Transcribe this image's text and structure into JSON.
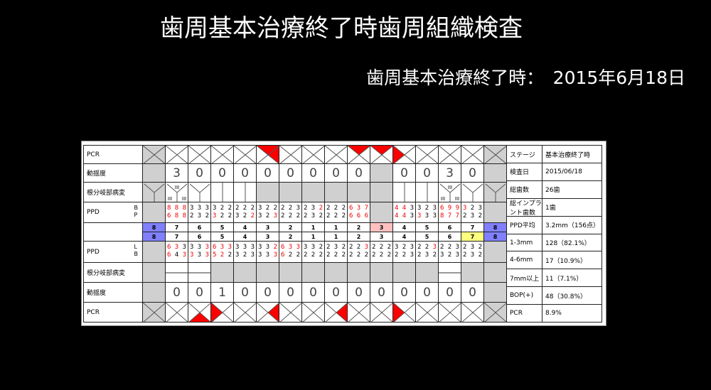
{
  "title": "歯周基本治療終了時歯周組織検査",
  "subtitle": "歯周基本治療終了時：　2015年6月18日",
  "colors": {
    "missing": "#d0d0d0",
    "plaque": "#ff0000",
    "bleeding_text": "#e00000",
    "molar_marker": "#8080ff",
    "highlight_pink": "#ffc0c0",
    "highlight_yellow": "#ffff80"
  },
  "row_labels": {
    "pcr": "PCR",
    "mobility": "動揺度",
    "furcation": "根分岐部病変",
    "ppd": "PPD",
    "upper_sides": "B\nP",
    "lower_sides": "L\nB"
  },
  "upper": {
    "teeth": [
      "8",
      "7",
      "6",
      "5",
      "4",
      "3",
      "2",
      "1",
      "1",
      "2",
      "3",
      "4",
      "5",
      "6",
      "7",
      "8"
    ],
    "tooth_highlight": [
      "blue",
      "",
      "",
      "",
      "",
      "",
      "",
      "",
      "",
      "",
      "pink",
      "",
      "",
      "",
      "",
      "blue"
    ],
    "missing": [
      true,
      false,
      false,
      false,
      false,
      false,
      false,
      false,
      false,
      false,
      true,
      false,
      false,
      false,
      false,
      true
    ],
    "pcr": [
      "",
      "",
      "",
      "",
      "",
      "top-left",
      "",
      "",
      "",
      "top",
      "top",
      "left",
      "",
      "",
      "",
      ""
    ],
    "mobility": [
      "",
      "3",
      "0",
      "0",
      "0",
      "0",
      "0",
      "0",
      "0",
      "0",
      "",
      "0",
      "0",
      "3",
      "0",
      ""
    ],
    "furcation": [
      "Y",
      "Y3",
      "Y",
      "I",
      "I",
      "",
      "",
      "",
      "",
      "",
      "",
      "I",
      "I",
      "Y3",
      "Y",
      "Y"
    ],
    "ppd_b": [
      "",
      "888",
      "333",
      "322",
      "222",
      "322",
      "223",
      "232",
      "222",
      "637",
      "",
      "443",
      "323",
      "699",
      "323",
      ""
    ],
    "ppd_b_red": [
      "",
      "111",
      "000",
      "000",
      "000",
      "000",
      "000",
      "001",
      "000",
      "111",
      "",
      "110",
      "000",
      "111",
      "100",
      ""
    ],
    "ppd_p": [
      "",
      "688",
      "232",
      "322",
      "322",
      "323",
      "222",
      "232",
      "222",
      "666",
      "",
      "443",
      "333",
      "877",
      "232",
      ""
    ],
    "ppd_p_red": [
      "",
      "111",
      "000",
      "100",
      "001",
      "001",
      "000",
      "000",
      "000",
      "111",
      "",
      "110",
      "100",
      "111",
      "000",
      ""
    ]
  },
  "lower": {
    "teeth": [
      "8",
      "7",
      "6",
      "5",
      "4",
      "3",
      "2",
      "1",
      "1",
      "2",
      "3",
      "4",
      "5",
      "6",
      "7",
      "8"
    ],
    "tooth_highlight": [
      "blue",
      "",
      "",
      "",
      "",
      "",
      "",
      "",
      "",
      "",
      "",
      "",
      "",
      "",
      "yellow",
      "blue"
    ],
    "missing": [
      true,
      false,
      false,
      false,
      false,
      false,
      false,
      false,
      false,
      false,
      false,
      false,
      false,
      false,
      false,
      true
    ],
    "pcr": [
      "",
      "",
      "bottom",
      "left",
      "",
      "right",
      "",
      "",
      "right",
      "",
      "",
      "left",
      "",
      "",
      "",
      ""
    ],
    "mobility": [
      "",
      "0",
      "0",
      "1",
      "0",
      "0",
      "0",
      "0",
      "0",
      "0",
      "0",
      "0",
      "0",
      "0",
      "0",
      ""
    ],
    "furcation": [
      "g",
      "H",
      "H",
      "g",
      "g",
      "g",
      "g",
      "g",
      "g",
      "g",
      "g",
      "g",
      "g",
      "H",
      "g",
      "g"
    ],
    "ppd_l": [
      "",
      "633",
      "333",
      "633",
      "333",
      "332",
      "633",
      "332",
      "232",
      "223",
      "222",
      "323",
      "223",
      "223",
      "232",
      ""
    ],
    "ppd_l_red": [
      "",
      "110",
      "001",
      "111",
      "000",
      "001",
      "111",
      "000",
      "000",
      "001",
      "000",
      "000",
      "001",
      "000",
      "000",
      ""
    ],
    "ppd_b": [
      "",
      "643",
      "333",
      "522",
      "323",
      "333",
      "622",
      "222",
      "222",
      "222",
      "222",
      "223",
      "232",
      "323",
      "232",
      ""
    ],
    "ppd_b_red": [
      "",
      "101",
      "101",
      "110",
      "000",
      "001",
      "100",
      "000",
      "000",
      "000",
      "000",
      "000",
      "000",
      "000",
      "000",
      ""
    ]
  },
  "info": [
    {
      "label": "ステージ",
      "value": "基本治療終了時"
    },
    {
      "label": "検査日",
      "value": "2015/06/18"
    },
    {
      "label": "総歯数",
      "value": "26歯"
    },
    {
      "label": "総インプラント歯数",
      "value": "1歯"
    },
    {
      "label": "PPD平均",
      "value": "3.2mm（156点）"
    },
    {
      "label": "1-3mm",
      "value": "128（82.1%）"
    },
    {
      "label": "4-6mm",
      "value": "17（10.9%）"
    },
    {
      "label": "7mm以上",
      "value": "11（7.1%）"
    },
    {
      "label": "BOP(+)",
      "value": "48（30.8%）"
    },
    {
      "label": "PCR",
      "value": "8.9%"
    }
  ]
}
